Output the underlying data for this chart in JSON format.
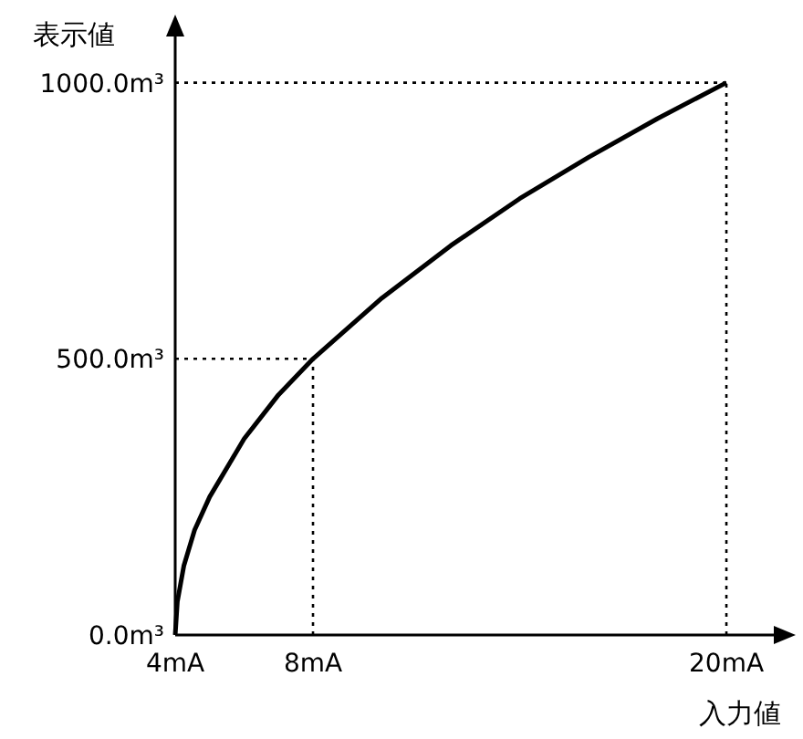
{
  "chart_data": {
    "type": "line",
    "xlabel": "入力値",
    "ylabel": "表示値",
    "x": [
      4,
      4.0625,
      4.25,
      4.5625,
      5,
      6,
      7,
      8,
      10,
      12,
      14,
      16,
      18,
      20
    ],
    "series": [
      {
        "color": "#000000",
        "values": [
          0,
          60,
          125,
          190,
          250,
          355,
          435,
          500,
          610,
          705,
          790,
          865,
          935,
          1000
        ]
      }
    ],
    "xlim": [
      4,
      21.8
    ],
    "ylim": [
      0,
      1110
    ],
    "xticks": [
      {
        "value": 4,
        "label": "4mA"
      },
      {
        "value": 8,
        "label": "8mA"
      },
      {
        "value": 20,
        "label": "20mA"
      }
    ],
    "yticks": [
      {
        "value": 0,
        "label": "0.0m³"
      },
      {
        "value": 500,
        "label": "500.0m³"
      },
      {
        "value": 1000,
        "label": "1000.0m³"
      }
    ],
    "ref_lines": [
      {
        "axis": "x",
        "value": 8,
        "line_style": "dotted",
        "color": "#000000"
      },
      {
        "axis": "y",
        "value": 500,
        "line_style": "dotted",
        "color": "#000000"
      },
      {
        "axis": "x",
        "value": 20,
        "line_style": "dotted",
        "color": "#000000"
      },
      {
        "axis": "y",
        "value": 1000,
        "line_style": "dotted",
        "color": "#000000"
      }
    ],
    "grid": false,
    "marker": "none",
    "line_style": "solid"
  }
}
